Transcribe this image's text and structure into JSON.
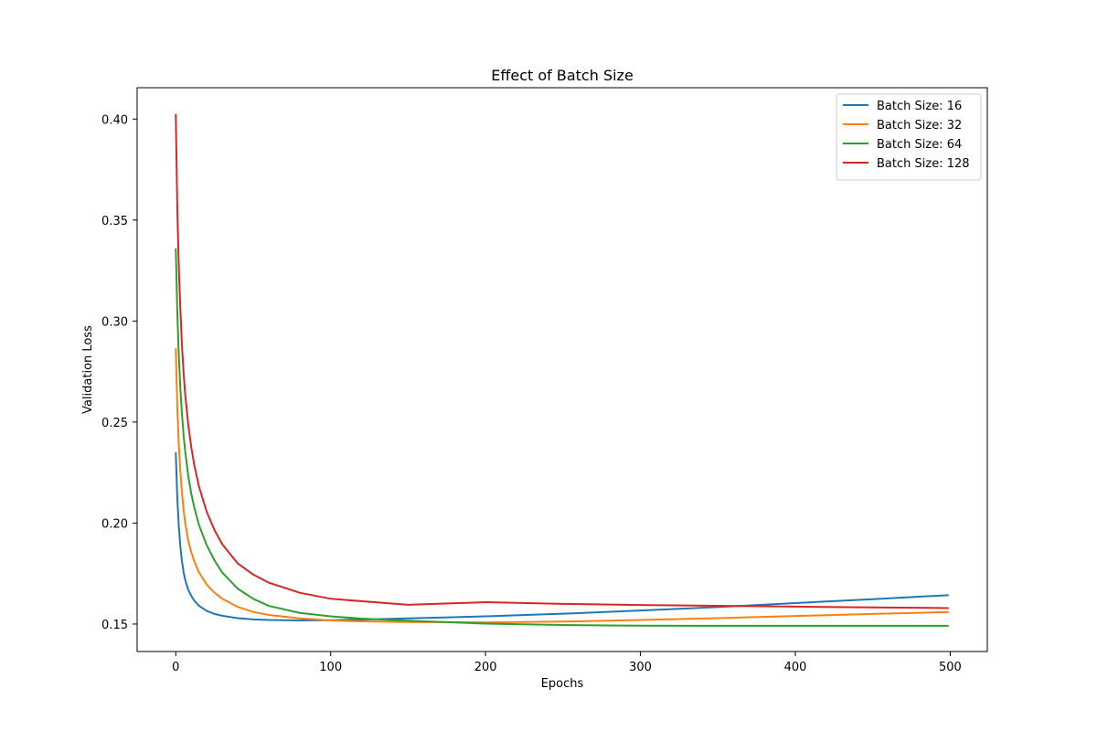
{
  "chart_data": {
    "type": "line",
    "title": "Effect of Batch Size",
    "xlabel": "Epochs",
    "ylabel": "Validation Loss",
    "xlim": [
      -24.95,
      523.95
    ],
    "ylim": [
      0.1364,
      0.4155
    ],
    "xticks": [
      0,
      100,
      200,
      300,
      400,
      500
    ],
    "yticks": [
      0.15,
      0.2,
      0.25,
      0.3,
      0.35,
      0.4
    ],
    "ytick_labels": [
      "0.15",
      "0.20",
      "0.25",
      "0.30",
      "0.35",
      "0.40"
    ],
    "grid": false,
    "legend_position": "top-right",
    "series": [
      {
        "name": "Batch Size: 16",
        "color": "#1f77b4",
        "x": [
          0,
          1,
          2,
          3,
          4,
          5,
          6,
          8,
          10,
          12,
          15,
          20,
          25,
          30,
          40,
          50,
          60,
          80,
          100,
          130,
          150,
          200,
          250,
          300,
          350,
          400,
          450,
          499
        ],
        "y": [
          0.235,
          0.212,
          0.198,
          0.188,
          0.181,
          0.176,
          0.172,
          0.167,
          0.164,
          0.1615,
          0.159,
          0.1565,
          0.155,
          0.1541,
          0.1529,
          0.1523,
          0.152,
          0.1518,
          0.1519,
          0.1524,
          0.1528,
          0.1538,
          0.1551,
          0.1567,
          0.1584,
          0.1604,
          0.1623,
          0.1643
        ]
      },
      {
        "name": "Batch Size: 32",
        "color": "#ff7f0e",
        "x": [
          0,
          1,
          2,
          3,
          4,
          5,
          6,
          8,
          10,
          12,
          15,
          20,
          25,
          30,
          40,
          50,
          60,
          80,
          100,
          120,
          150,
          200,
          250,
          300,
          350,
          400,
          450,
          499
        ],
        "y": [
          0.2865,
          0.257,
          0.238,
          0.225,
          0.215,
          0.207,
          0.2005,
          0.1915,
          0.1855,
          0.181,
          0.1755,
          0.1695,
          0.1655,
          0.1625,
          0.1585,
          0.156,
          0.1545,
          0.1528,
          0.1518,
          0.1513,
          0.151,
          0.1508,
          0.1512,
          0.152,
          0.1529,
          0.154,
          0.155,
          0.1559
        ]
      },
      {
        "name": "Batch Size: 64",
        "color": "#2ca02c",
        "x": [
          0,
          1,
          2,
          3,
          4,
          5,
          6,
          8,
          10,
          12,
          15,
          20,
          25,
          30,
          40,
          50,
          60,
          80,
          100,
          120,
          150,
          200,
          250,
          300,
          350,
          400,
          450,
          499
        ],
        "y": [
          0.336,
          0.304,
          0.282,
          0.266,
          0.254,
          0.244,
          0.236,
          0.2235,
          0.2145,
          0.2075,
          0.199,
          0.189,
          0.1815,
          0.1755,
          0.1675,
          0.1625,
          0.159,
          0.1555,
          0.1538,
          0.1527,
          0.1516,
          0.1502,
          0.1495,
          0.1492,
          0.1491,
          0.1491,
          0.1491,
          0.1491
        ]
      },
      {
        "name": "Batch Size: 128",
        "color": "#d62728",
        "x": [
          0,
          1,
          2,
          3,
          4,
          5,
          6,
          8,
          10,
          12,
          15,
          20,
          25,
          30,
          40,
          50,
          60,
          80,
          100,
          150,
          200,
          250,
          300,
          350,
          400,
          450,
          499
        ],
        "y": [
          0.4025,
          0.355,
          0.326,
          0.305,
          0.288,
          0.275,
          0.2645,
          0.249,
          0.2375,
          0.2285,
          0.218,
          0.2055,
          0.1965,
          0.1895,
          0.18,
          0.1745,
          0.1705,
          0.1655,
          0.1625,
          0.1595,
          0.1608,
          0.16,
          0.1594,
          0.159,
          0.1586,
          0.1582,
          0.1579
        ]
      }
    ]
  }
}
